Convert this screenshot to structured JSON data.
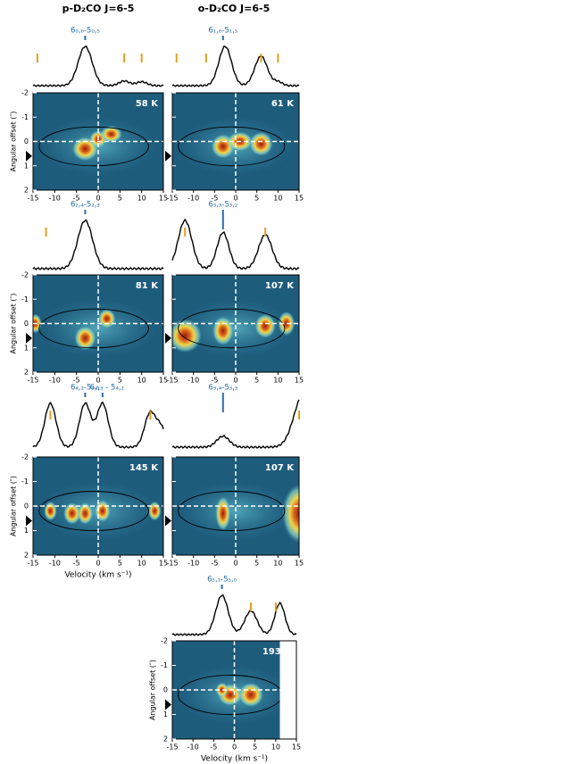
{
  "headers": [
    "p-D₂CO J=6-5",
    "o-D₂CO J=6-5"
  ],
  "y_axis_label": "Angular offset (″)",
  "x_axis_label": "Velocity (km s⁻¹)",
  "x_ticks": [
    "-15",
    "-10",
    "-5",
    "0",
    "5",
    "10",
    "15"
  ],
  "y_ticks": [
    "-2",
    "-1",
    "0",
    "1",
    "2"
  ],
  "panels": [
    {
      "lines": [
        "6₀,₆-5₀,₅"
      ],
      "temperature": "58 K"
    },
    {
      "lines": [
        "6₁,₆-5₁,₅"
      ],
      "temperature": "61 K"
    },
    {
      "lines": [
        "6₂,₄-5₂,₃"
      ],
      "temperature": "81 K"
    },
    {
      "lines": [
        "6₃,₃-5₃,₂"
      ],
      "temperature": "107 K"
    },
    {
      "lines": [
        "6₄,₂-5₄,₁",
        "6₄,₃ - 5₄,₂"
      ],
      "temperature": "145 K"
    },
    {
      "lines": [
        "6₃,₄-5₃,₃"
      ],
      "temperature": "107 K"
    },
    {
      "lines": [
        "6₅,₁-5₅,₀"
      ],
      "temperature": "193 K"
    }
  ]
}
